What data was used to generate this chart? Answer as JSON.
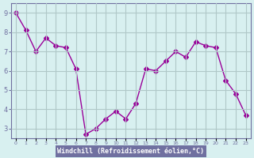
{
  "x": [
    0,
    1,
    2,
    3,
    4,
    5,
    6,
    7,
    8,
    9,
    10,
    11,
    12,
    13,
    14,
    15,
    16,
    17,
    18,
    19,
    20,
    21,
    22,
    23
  ],
  "y": [
    9.0,
    8.1,
    7.0,
    7.7,
    7.3,
    7.2,
    6.1,
    2.7,
    3.0,
    3.5,
    3.9,
    3.5,
    4.3,
    6.1,
    6.0,
    6.5,
    7.0,
    6.7,
    7.5,
    7.3,
    7.2,
    5.5,
    4.8,
    3.7
  ],
  "line_color": "#990099",
  "marker": "D",
  "marker_size": 3,
  "background_color": "#d8f0f0",
  "grid_color": "#b0c8c8",
  "xlabel": "Windchill (Refroidissement éolien,°C)",
  "xlabel_color": "#ffffff",
  "xlabel_bg": "#7070a0",
  "ylim": [
    2.5,
    9.5
  ],
  "xlim": [
    -0.5,
    23.5
  ],
  "yticks": [
    3,
    4,
    5,
    6,
    7,
    8,
    9
  ],
  "xtick_labels": [
    "0",
    "1",
    "2",
    "3",
    "4",
    "5",
    "6",
    "7",
    "8",
    "9",
    "10",
    "11",
    "12",
    "13",
    "14",
    "15",
    "16",
    "17",
    "18",
    "19",
    "20",
    "21",
    "22",
    "23"
  ],
  "tick_color": "#7070a0",
  "spine_color": "#7070a0"
}
